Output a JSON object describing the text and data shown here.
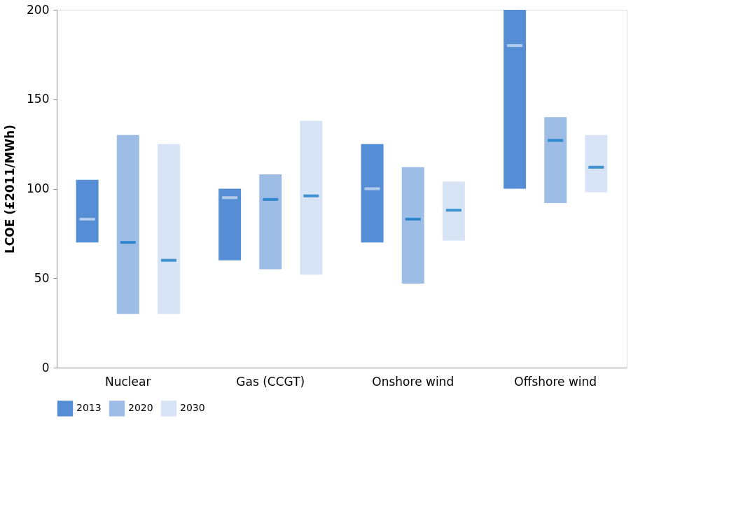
{
  "chart_data": {
    "type": "box",
    "ylabel": "LCOE (£2011/MWh)",
    "categories": [
      "Nuclear",
      "Gas (CCGT)",
      "Onshore wind",
      "Offshore wind"
    ],
    "series": [
      {
        "name": "2013",
        "color": "#558ed5",
        "boxes": [
          {
            "low": 70,
            "q1": 70,
            "median": 83,
            "q3": 105,
            "high": 105
          },
          {
            "low": 60,
            "q1": 60,
            "median": 95,
            "q3": 100,
            "high": 100
          },
          {
            "low": 70,
            "q1": 70,
            "median": 100,
            "q3": 125,
            "high": 125
          },
          {
            "low": 100,
            "q1": 100,
            "median": 180,
            "q3": 200,
            "high": 200
          }
        ]
      },
      {
        "name": "2020",
        "color": "#9dbde6",
        "boxes": [
          {
            "low": 30,
            "q1": 30,
            "median": 70,
            "q3": 130,
            "high": 130
          },
          {
            "low": 55,
            "q1": 55,
            "median": 94,
            "q3": 108,
            "high": 108
          },
          {
            "low": 47,
            "q1": 47,
            "median": 83,
            "q3": 112,
            "high": 112
          },
          {
            "low": 92,
            "q1": 92,
            "median": 127,
            "q3": 140,
            "high": 140
          }
        ]
      },
      {
        "name": "2030",
        "color": "#d6e4f5",
        "boxes": [
          {
            "low": 30,
            "q1": 30,
            "median": 60,
            "q3": 125,
            "high": 125
          },
          {
            "low": 52,
            "q1": 52,
            "median": 96,
            "q3": 138,
            "high": 138
          },
          {
            "low": 71,
            "q1": 71,
            "median": 88,
            "q3": 104,
            "high": 104
          },
          {
            "low": 98,
            "q1": 98,
            "median": 112,
            "q3": 130,
            "high": 130
          }
        ]
      }
    ],
    "ylim": [
      0,
      200
    ],
    "yticks": [
      0,
      50,
      100,
      150,
      200
    ],
    "grid": false,
    "legend": "bottom"
  }
}
